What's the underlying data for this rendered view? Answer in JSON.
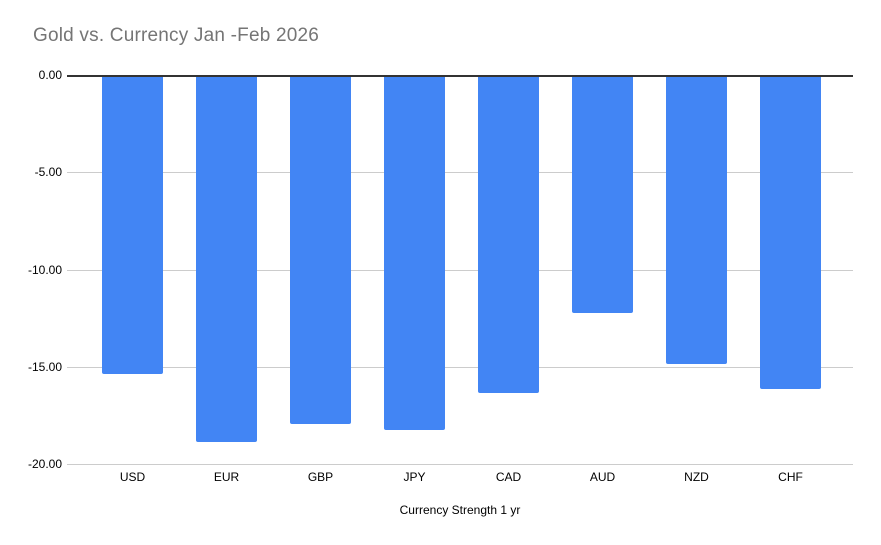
{
  "chart_data": {
    "type": "bar",
    "title": "Gold vs. Currency Jan -Feb 2026",
    "categories": [
      "USD",
      "EUR",
      "GBP",
      "JPY",
      "CAD",
      "AUD",
      "NZD",
      "CHF"
    ],
    "values": [
      -15.3,
      -18.8,
      -17.9,
      -18.2,
      -16.3,
      -12.2,
      -14.8,
      -16.1
    ],
    "xlabel": "Currency Strength 1 yr",
    "ylabel": "",
    "ylim": [
      -20,
      0
    ],
    "ytick_labels": [
      "0.00",
      "-5.00",
      "-10.00",
      "-15.00",
      "-20.00"
    ],
    "grid": true,
    "legend": "none",
    "colors": {
      "bar": "#4285F4",
      "grid": "#cccccc",
      "baseline": "#333333",
      "title": "#757575",
      "label": "#000000",
      "background": "#ffffff"
    }
  }
}
